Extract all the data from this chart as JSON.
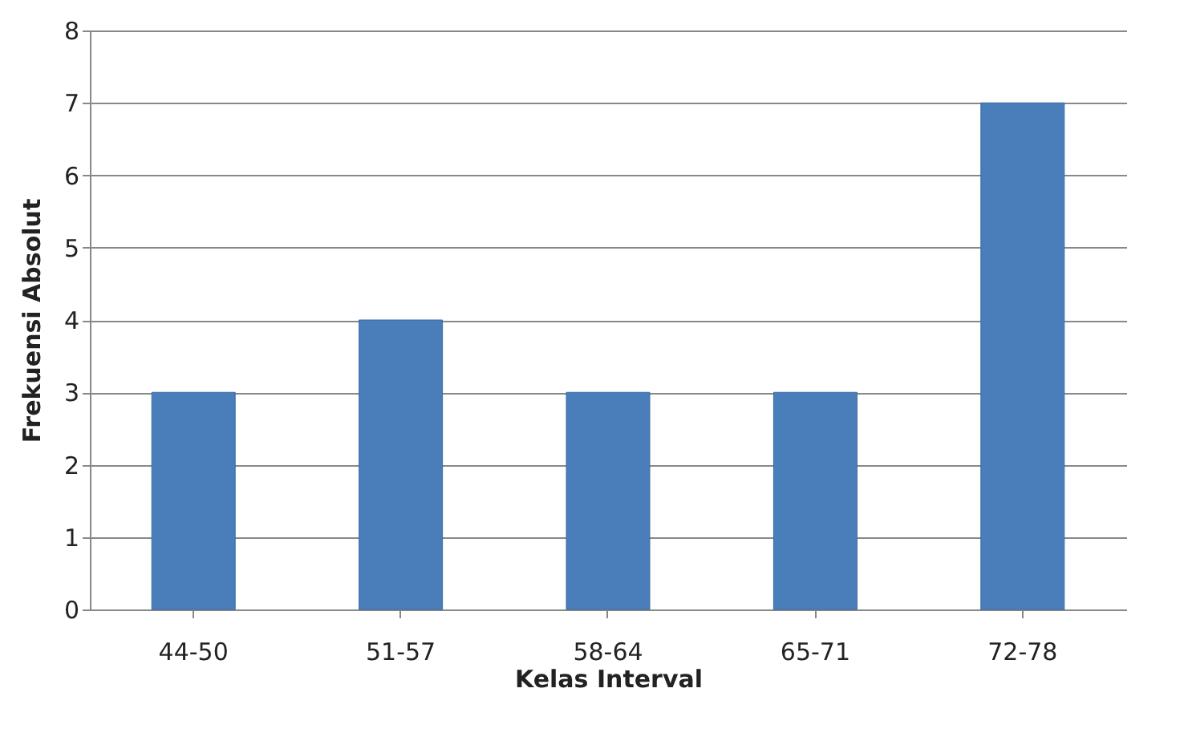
{
  "chart_data": {
    "type": "bar",
    "categories": [
      "44-50",
      "51-57",
      "58-64",
      "65-71",
      "72-78"
    ],
    "values": [
      3,
      4,
      3,
      3,
      7
    ],
    "color": "#4a7ebb",
    "xlabel": "Kelas Interval",
    "ylabel": "Frekuensi Absolut",
    "ylim": [
      0,
      8
    ],
    "yticks": [
      0,
      1,
      2,
      3,
      4,
      5,
      6,
      7,
      8
    ],
    "grid": "y"
  }
}
